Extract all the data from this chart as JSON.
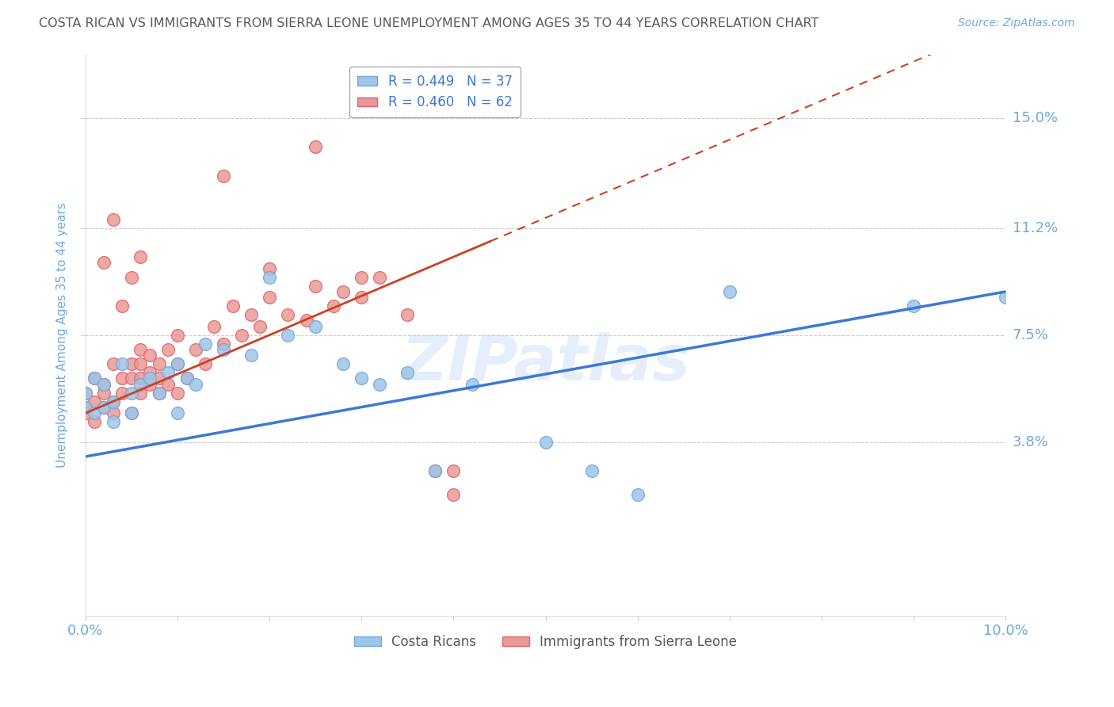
{
  "title": "COSTA RICAN VS IMMIGRANTS FROM SIERRA LEONE UNEMPLOYMENT AMONG AGES 35 TO 44 YEARS CORRELATION CHART",
  "source": "Source: ZipAtlas.com",
  "ylabel": "Unemployment Among Ages 35 to 44 years",
  "xlim": [
    0.0,
    0.1
  ],
  "ylim": [
    -0.022,
    0.172
  ],
  "yticks": [
    0.038,
    0.075,
    0.112,
    0.15
  ],
  "ytick_labels": [
    "3.8%",
    "7.5%",
    "11.2%",
    "15.0%"
  ],
  "xticks": [
    0.0,
    0.01,
    0.02,
    0.03,
    0.04,
    0.05,
    0.06,
    0.07,
    0.08,
    0.09,
    0.1
  ],
  "color_blue": "#9fc5e8",
  "color_pink": "#ea9999",
  "color_line_blue": "#3c78d8",
  "color_line_pink": "#cc4125",
  "background_color": "#ffffff",
  "grid_color": "#cccccc",
  "title_color": "#595959",
  "axis_label_color": "#6fa8dc",
  "tick_label_color": "#6fa8dc",
  "cr_x": [
    0.0,
    0.0,
    0.001,
    0.001,
    0.002,
    0.002,
    0.003,
    0.003,
    0.004,
    0.005,
    0.005,
    0.006,
    0.007,
    0.008,
    0.009,
    0.01,
    0.01,
    0.011,
    0.012,
    0.013,
    0.015,
    0.018,
    0.02,
    0.022,
    0.025,
    0.028,
    0.03,
    0.032,
    0.035,
    0.038,
    0.042,
    0.05,
    0.055,
    0.06,
    0.07,
    0.09,
    0.1
  ],
  "cr_y": [
    0.05,
    0.055,
    0.048,
    0.06,
    0.05,
    0.058,
    0.052,
    0.045,
    0.065,
    0.055,
    0.048,
    0.058,
    0.06,
    0.055,
    0.062,
    0.048,
    0.065,
    0.06,
    0.058,
    0.072,
    0.07,
    0.068,
    0.095,
    0.075,
    0.078,
    0.065,
    0.06,
    0.058,
    0.062,
    0.028,
    0.058,
    0.038,
    0.028,
    0.02,
    0.09,
    0.085,
    0.088
  ],
  "sl_x": [
    0.0,
    0.0,
    0.0,
    0.001,
    0.001,
    0.001,
    0.002,
    0.002,
    0.002,
    0.003,
    0.003,
    0.003,
    0.004,
    0.004,
    0.005,
    0.005,
    0.005,
    0.006,
    0.006,
    0.006,
    0.006,
    0.007,
    0.007,
    0.007,
    0.008,
    0.008,
    0.008,
    0.009,
    0.009,
    0.01,
    0.01,
    0.01,
    0.011,
    0.012,
    0.013,
    0.014,
    0.015,
    0.016,
    0.017,
    0.018,
    0.019,
    0.02,
    0.022,
    0.024,
    0.025,
    0.027,
    0.028,
    0.03,
    0.032,
    0.035,
    0.038,
    0.04,
    0.015,
    0.02,
    0.025,
    0.03,
    0.002,
    0.003,
    0.004,
    0.005,
    0.006,
    0.04
  ],
  "sl_y": [
    0.05,
    0.055,
    0.048,
    0.06,
    0.052,
    0.045,
    0.055,
    0.05,
    0.058,
    0.052,
    0.048,
    0.065,
    0.06,
    0.055,
    0.065,
    0.06,
    0.048,
    0.07,
    0.055,
    0.06,
    0.065,
    0.062,
    0.058,
    0.068,
    0.055,
    0.06,
    0.065,
    0.07,
    0.058,
    0.065,
    0.055,
    0.075,
    0.06,
    0.07,
    0.065,
    0.078,
    0.072,
    0.085,
    0.075,
    0.082,
    0.078,
    0.088,
    0.082,
    0.08,
    0.092,
    0.085,
    0.09,
    0.088,
    0.095,
    0.082,
    0.028,
    0.028,
    0.13,
    0.098,
    0.14,
    0.095,
    0.1,
    0.115,
    0.085,
    0.095,
    0.102,
    0.02
  ]
}
